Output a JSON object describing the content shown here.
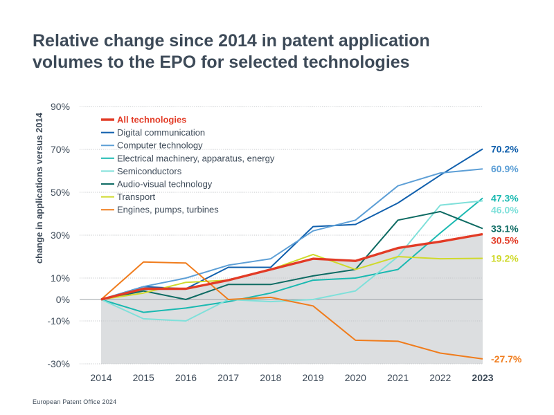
{
  "title_lines": [
    "Relative change since 2014 in patent application",
    "volumes to the EPO for selected technologies"
  ],
  "footer": "European Patent Office 2024",
  "chart_data": {
    "type": "line",
    "title": "Relative change since 2014 in patent application volumes to the EPO for selected technologies",
    "xlabel": "",
    "ylabel": "change in applications versus 2014",
    "x": [
      2014,
      2015,
      2016,
      2017,
      2018,
      2019,
      2020,
      2021,
      2022,
      2023
    ],
    "x_tick_labels": [
      "2014",
      "2015",
      "2016",
      "2017",
      "2018",
      "2019",
      "2020",
      "2021",
      "2022",
      "2023"
    ],
    "ylim": [
      -30,
      90
    ],
    "y_ticks": [
      90,
      70,
      50,
      30,
      10,
      0,
      -10,
      -30
    ],
    "y_tick_labels": [
      "90%",
      "70%",
      "50%",
      "30%",
      "10%",
      "0%",
      "-10%",
      "-30%"
    ],
    "grid": true,
    "legend_position": "top-left",
    "series": [
      {
        "name": "Digital communication",
        "color": "#1160ad",
        "values": [
          0,
          6,
          5,
          15,
          15,
          34,
          35,
          45,
          58,
          70.2
        ],
        "end_label": "70.2%"
      },
      {
        "name": "Computer technology",
        "color": "#5d9fd6",
        "values": [
          0,
          6,
          10,
          16,
          19,
          32,
          37,
          53,
          59,
          60.9
        ],
        "end_label": "60.9%"
      },
      {
        "name": "Electrical machinery, apparatus, energy",
        "color": "#1ab9b1",
        "values": [
          0,
          -6,
          -4,
          -1,
          3,
          9,
          10,
          14,
          31,
          47.3
        ],
        "end_label": "47.3%"
      },
      {
        "name": "Semiconductors",
        "color": "#7fe0da",
        "values": [
          0,
          -9,
          -10,
          0,
          -1,
          0,
          4,
          20,
          44,
          46.0
        ],
        "end_label": "46.0%"
      },
      {
        "name": "Audio-visual technology",
        "color": "#0e6b63",
        "values": [
          0,
          4,
          0,
          7,
          7,
          11,
          14,
          37,
          41,
          33.1
        ],
        "end_label": "33.1%"
      },
      {
        "name": "Transport",
        "color": "#cfd92b",
        "values": [
          0,
          3,
          8,
          9,
          14,
          21,
          14,
          20,
          19,
          19.2
        ],
        "end_label": "19.2%"
      },
      {
        "name": "Engines, pumps, turbines",
        "color": "#f07c1c",
        "values": [
          0,
          17.5,
          17,
          0,
          1,
          -3,
          -19,
          -19.5,
          -25,
          -27.7
        ],
        "end_label": "-27.7%"
      },
      {
        "name": "All technologies",
        "color": "#e23b26",
        "values": [
          0,
          5,
          5,
          9,
          14,
          19,
          18,
          24,
          27,
          30.5
        ],
        "end_label": "30.5%",
        "filled": true
      }
    ],
    "legend_order": [
      "All technologies",
      "Digital communication",
      "Computer technology",
      "Electrical machinery, apparatus, energy",
      "Semiconductors",
      "Audio-visual technology",
      "Transport",
      "Engines, pumps, turbines"
    ],
    "area_color": "#dcdee0"
  }
}
